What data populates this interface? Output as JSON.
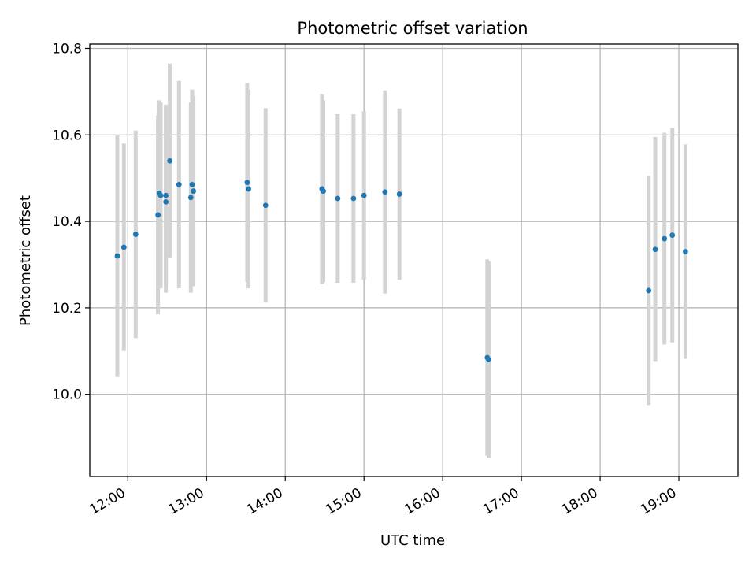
{
  "chart_data": {
    "type": "scatter",
    "title": "Photometric offset variation",
    "xlabel": "UTC time",
    "ylabel": "Photometric offset",
    "x_ticks": [
      "12:00",
      "13:00",
      "14:00",
      "15:00",
      "16:00",
      "17:00",
      "18:00",
      "19:00"
    ],
    "y_ticks": [
      "10.0",
      "10.2",
      "10.4",
      "10.6",
      "10.8"
    ],
    "xlim": [
      "11:31",
      "19:45"
    ],
    "ylim": [
      9.81,
      10.81
    ],
    "grid": true,
    "colors": {
      "point": "#1f77b4",
      "errorbar": "#d3d3d3",
      "grid": "#b0b0b0",
      "axis": "#000000"
    },
    "series": [
      {
        "points": [
          {
            "x": "11:52",
            "y": 10.32,
            "err": 0.28
          },
          {
            "x": "11:57",
            "y": 10.34,
            "err": 0.24
          },
          {
            "x": "12:06",
            "y": 10.37,
            "err": 0.24
          },
          {
            "x": "12:23",
            "y": 10.415,
            "err": 0.23
          },
          {
            "x": "12:24",
            "y": 10.465,
            "err": 0.215
          },
          {
            "x": "12:25",
            "y": 10.46,
            "err": 0.215
          },
          {
            "x": "12:29",
            "y": 10.46,
            "err": 0.21
          },
          {
            "x": "12:29",
            "y": 10.445,
            "err": 0.21
          },
          {
            "x": "12:32",
            "y": 10.54,
            "err": 0.225
          },
          {
            "x": "12:39",
            "y": 10.485,
            "err": 0.24
          },
          {
            "x": "12:48",
            "y": 10.455,
            "err": 0.22
          },
          {
            "x": "12:49",
            "y": 10.485,
            "err": 0.22
          },
          {
            "x": "12:50",
            "y": 10.47,
            "err": 0.22
          },
          {
            "x": "13:31",
            "y": 10.49,
            "err": 0.23
          },
          {
            "x": "13:32",
            "y": 10.475,
            "err": 0.23
          },
          {
            "x": "13:45",
            "y": 10.437,
            "err": 0.225
          },
          {
            "x": "14:28",
            "y": 10.475,
            "err": 0.22
          },
          {
            "x": "14:29",
            "y": 10.47,
            "err": 0.21
          },
          {
            "x": "14:40",
            "y": 10.453,
            "err": 0.195
          },
          {
            "x": "14:52",
            "y": 10.453,
            "err": 0.195
          },
          {
            "x": "15:00",
            "y": 10.46,
            "err": 0.195
          },
          {
            "x": "15:16",
            "y": 10.468,
            "err": 0.235
          },
          {
            "x": "15:27",
            "y": 10.463,
            "err": 0.198
          },
          {
            "x": "16:34",
            "y": 10.085,
            "err": 0.227
          },
          {
            "x": "16:35",
            "y": 10.08,
            "err": 0.227
          },
          {
            "x": "18:37",
            "y": 10.24,
            "err": 0.265
          },
          {
            "x": "18:42",
            "y": 10.335,
            "err": 0.26
          },
          {
            "x": "18:49",
            "y": 10.36,
            "err": 0.245
          },
          {
            "x": "18:55",
            "y": 10.368,
            "err": 0.248
          },
          {
            "x": "19:05",
            "y": 10.33,
            "err": 0.248
          }
        ]
      }
    ]
  }
}
